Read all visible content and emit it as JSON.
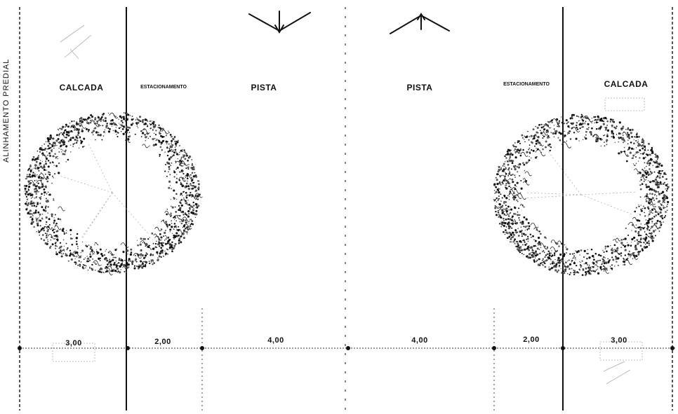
{
  "property_line_label": "ALINHAMENTO PREDIAL",
  "zones": [
    {
      "id": "sidewalk-left",
      "label": "CALCADA",
      "dimension": "3,00"
    },
    {
      "id": "parking-left",
      "label": "ESTACIONAMENTO",
      "dimension": "2,00"
    },
    {
      "id": "lane-left",
      "label": "PISTA",
      "dimension": "4,00"
    },
    {
      "id": "lane-right",
      "label": "PISTA",
      "dimension": "4,00"
    },
    {
      "id": "parking-right",
      "label": "ESTACIONAMENTO",
      "dimension": "2,00"
    },
    {
      "id": "sidewalk-right",
      "label": "CALCADA",
      "dimension": "3,00"
    }
  ],
  "colors": {
    "ink": "#111111",
    "dots": "#555555",
    "paper": "#ffffff"
  },
  "icons": [
    "traffic-arrow-down-icon",
    "traffic-arrow-up-icon",
    "tree-canopy-icon"
  ]
}
